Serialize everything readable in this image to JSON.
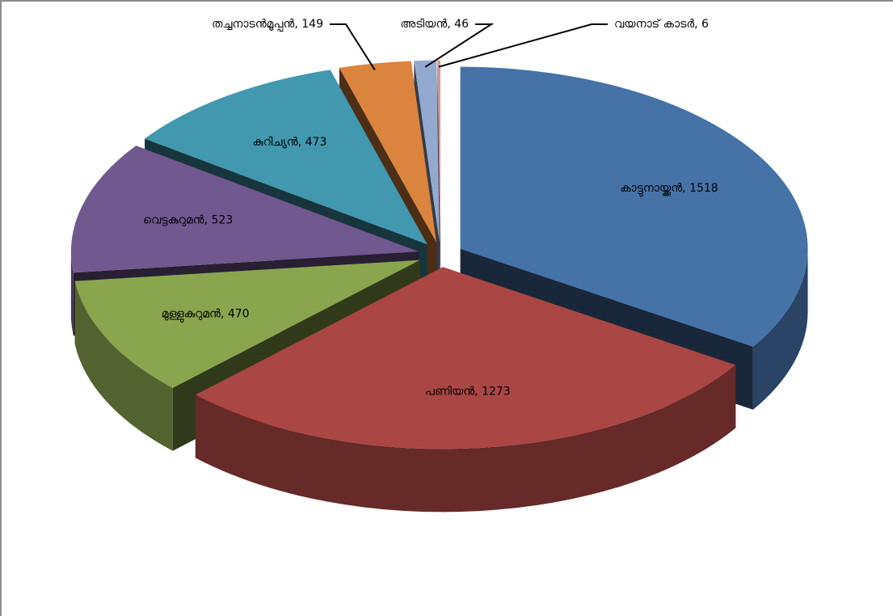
{
  "chart_data": {
    "type": "pie3d",
    "categories": [
      "കാട്ടുനായ്ക്കൻ",
      "പണിയൻ",
      "മുള്ളുകുറുമൻ",
      "വെട്ടകുറുമൻ",
      "കുറിച്യൻ",
      "തച്ചനാടൻമൂപ്പൻ",
      "അടിയൻ",
      "വയനാട് കാടർ"
    ],
    "values": [
      1518,
      1273,
      470,
      523,
      473,
      149,
      46,
      6
    ],
    "colors": [
      "#4572a7",
      "#aa4643",
      "#89a54e",
      "#71588f",
      "#4198af",
      "#db843d",
      "#93a9cf",
      "#d19392"
    ],
    "label_separator": ", "
  }
}
